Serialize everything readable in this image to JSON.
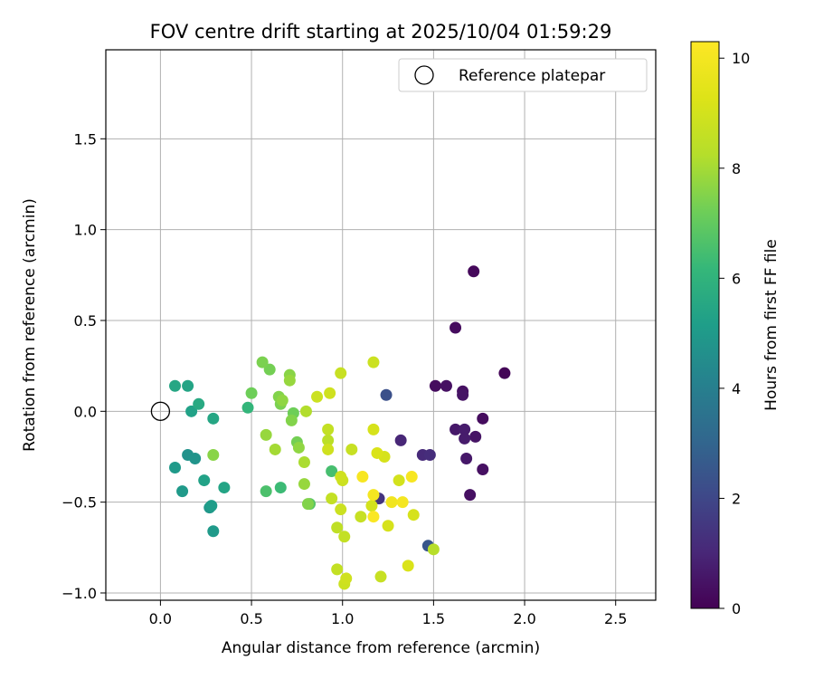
{
  "chart_data": {
    "type": "scatter",
    "title": "FOV centre drift starting at 2025/10/04 01:59:29",
    "xlabel": "Angular distance from reference (arcmin)",
    "ylabel": "Rotation from reference (arcmin)",
    "xlim": [
      -0.3,
      2.72
    ],
    "ylim": [
      -1.04,
      1.99
    ],
    "xticks": [
      0.0,
      0.5,
      1.0,
      1.5,
      2.0,
      2.5
    ],
    "xtick_labels": [
      "0.0",
      "0.5",
      "1.0",
      "1.5",
      "2.0",
      "2.5"
    ],
    "yticks": [
      -1.0,
      -0.5,
      0.0,
      0.5,
      1.0,
      1.5
    ],
    "ytick_labels": [
      "−1.0",
      "−0.5",
      "0.0",
      "0.5",
      "1.0",
      "1.5"
    ],
    "grid": true,
    "legend": {
      "position": "top-right",
      "entries": [
        "Reference platepar"
      ]
    },
    "reference_point": {
      "x": 0.0,
      "y": 0.0,
      "label": "Reference platepar"
    },
    "colorbar": {
      "label": "Hours from first FF file",
      "colormap": "viridis",
      "range": [
        0,
        10.3
      ],
      "ticks": [
        0,
        2,
        4,
        6,
        8,
        10
      ],
      "tick_labels": [
        "0",
        "2",
        "4",
        "6",
        "8",
        "10"
      ]
    },
    "points": [
      {
        "x": 1.89,
        "y": 0.21,
        "c": 0.1
      },
      {
        "x": 1.72,
        "y": 0.77,
        "c": 0.2
      },
      {
        "x": 1.62,
        "y": 0.46,
        "c": 0.3
      },
      {
        "x": 1.51,
        "y": 0.14,
        "c": 0.3
      },
      {
        "x": 1.57,
        "y": 0.14,
        "c": 0.4
      },
      {
        "x": 1.66,
        "y": 0.11,
        "c": 0.4
      },
      {
        "x": 1.66,
        "y": 0.09,
        "c": 0.5
      },
      {
        "x": 1.77,
        "y": -0.04,
        "c": 0.3
      },
      {
        "x": 1.62,
        "y": -0.1,
        "c": 0.6
      },
      {
        "x": 1.67,
        "y": -0.1,
        "c": 0.7
      },
      {
        "x": 1.67,
        "y": -0.15,
        "c": 0.7
      },
      {
        "x": 1.73,
        "y": -0.14,
        "c": 0.5
      },
      {
        "x": 1.68,
        "y": -0.26,
        "c": 0.6
      },
      {
        "x": 1.77,
        "y": -0.32,
        "c": 0.4
      },
      {
        "x": 1.7,
        "y": -0.46,
        "c": 0.4
      },
      {
        "x": 1.32,
        "y": -0.16,
        "c": 1.0
      },
      {
        "x": 1.44,
        "y": -0.24,
        "c": 1.1
      },
      {
        "x": 1.48,
        "y": -0.24,
        "c": 1.2
      },
      {
        "x": 1.2,
        "y": -0.48,
        "c": 1.4
      },
      {
        "x": 1.24,
        "y": 0.09,
        "c": 2.3
      },
      {
        "x": 1.47,
        "y": -0.74,
        "c": 2.5
      },
      {
        "x": 0.08,
        "y": 0.14,
        "c": 5.5
      },
      {
        "x": 0.15,
        "y": 0.14,
        "c": 5.4
      },
      {
        "x": 0.21,
        "y": 0.04,
        "c": 5.6
      },
      {
        "x": 0.17,
        "y": 0.0,
        "c": 5.3
      },
      {
        "x": 0.29,
        "y": -0.04,
        "c": 5.5
      },
      {
        "x": 0.08,
        "y": -0.31,
        "c": 5.0
      },
      {
        "x": 0.15,
        "y": -0.24,
        "c": 4.7
      },
      {
        "x": 0.19,
        "y": -0.26,
        "c": 4.8
      },
      {
        "x": 0.12,
        "y": -0.44,
        "c": 5.0
      },
      {
        "x": 0.24,
        "y": -0.38,
        "c": 5.3
      },
      {
        "x": 0.35,
        "y": -0.42,
        "c": 5.4
      },
      {
        "x": 0.28,
        "y": -0.52,
        "c": 5.1
      },
      {
        "x": 0.27,
        "y": -0.53,
        "c": 4.9
      },
      {
        "x": 0.29,
        "y": -0.66,
        "c": 5.0
      },
      {
        "x": 0.48,
        "y": 0.02,
        "c": 6.1
      },
      {
        "x": 0.66,
        "y": -0.42,
        "c": 6.3
      },
      {
        "x": 0.58,
        "y": -0.44,
        "c": 6.6
      },
      {
        "x": 0.82,
        "y": -0.51,
        "c": 6.8
      },
      {
        "x": 0.94,
        "y": -0.33,
        "c": 6.5
      },
      {
        "x": 0.29,
        "y": -0.24,
        "c": 7.6
      },
      {
        "x": 0.5,
        "y": 0.1,
        "c": 7.2
      },
      {
        "x": 0.56,
        "y": 0.27,
        "c": 7.4
      },
      {
        "x": 0.6,
        "y": 0.23,
        "c": 7.3
      },
      {
        "x": 0.65,
        "y": 0.08,
        "c": 7.5
      },
      {
        "x": 0.67,
        "y": 0.06,
        "c": 7.7
      },
      {
        "x": 0.66,
        "y": 0.04,
        "c": 7.4
      },
      {
        "x": 0.71,
        "y": 0.2,
        "c": 7.6
      },
      {
        "x": 0.71,
        "y": 0.17,
        "c": 7.8
      },
      {
        "x": 0.73,
        "y": -0.01,
        "c": 7.2
      },
      {
        "x": 0.72,
        "y": -0.05,
        "c": 7.5
      },
      {
        "x": 0.58,
        "y": -0.13,
        "c": 7.8
      },
      {
        "x": 0.63,
        "y": -0.21,
        "c": 8.0
      },
      {
        "x": 0.75,
        "y": -0.17,
        "c": 7.3
      },
      {
        "x": 0.76,
        "y": -0.2,
        "c": 7.7
      },
      {
        "x": 0.79,
        "y": -0.28,
        "c": 8.1
      },
      {
        "x": 0.79,
        "y": -0.4,
        "c": 7.8
      },
      {
        "x": 0.81,
        "y": -0.51,
        "c": 7.5
      },
      {
        "x": 0.8,
        "y": 0.0,
        "c": 8.2
      },
      {
        "x": 0.86,
        "y": 0.08,
        "c": 8.8
      },
      {
        "x": 0.93,
        "y": 0.1,
        "c": 8.9
      },
      {
        "x": 0.99,
        "y": 0.21,
        "c": 8.7
      },
      {
        "x": 1.17,
        "y": 0.27,
        "c": 8.8
      },
      {
        "x": 0.92,
        "y": -0.1,
        "c": 8.6
      },
      {
        "x": 0.92,
        "y": -0.16,
        "c": 8.4
      },
      {
        "x": 0.92,
        "y": -0.21,
        "c": 8.9
      },
      {
        "x": 1.05,
        "y": -0.21,
        "c": 8.7
      },
      {
        "x": 1.17,
        "y": -0.1,
        "c": 9.1
      },
      {
        "x": 1.19,
        "y": -0.23,
        "c": 9.2
      },
      {
        "x": 1.23,
        "y": -0.25,
        "c": 9.1
      },
      {
        "x": 0.99,
        "y": -0.36,
        "c": 8.9
      },
      {
        "x": 1.0,
        "y": -0.38,
        "c": 8.8
      },
      {
        "x": 0.94,
        "y": -0.48,
        "c": 8.6
      },
      {
        "x": 0.99,
        "y": -0.54,
        "c": 8.8
      },
      {
        "x": 0.97,
        "y": -0.64,
        "c": 8.5
      },
      {
        "x": 1.01,
        "y": -0.69,
        "c": 8.6
      },
      {
        "x": 1.1,
        "y": -0.58,
        "c": 8.7
      },
      {
        "x": 1.16,
        "y": -0.52,
        "c": 9.0
      },
      {
        "x": 1.25,
        "y": -0.63,
        "c": 9.1
      },
      {
        "x": 1.31,
        "y": -0.38,
        "c": 9.0
      },
      {
        "x": 1.39,
        "y": -0.57,
        "c": 9.1
      },
      {
        "x": 0.97,
        "y": -0.87,
        "c": 8.6
      },
      {
        "x": 1.02,
        "y": -0.92,
        "c": 8.9
      },
      {
        "x": 1.01,
        "y": -0.95,
        "c": 8.8
      },
      {
        "x": 1.21,
        "y": -0.91,
        "c": 8.7
      },
      {
        "x": 1.36,
        "y": -0.85,
        "c": 9.2
      },
      {
        "x": 1.5,
        "y": -0.76,
        "c": 8.3
      },
      {
        "x": 1.11,
        "y": -0.36,
        "c": 10.1
      },
      {
        "x": 1.17,
        "y": -0.46,
        "c": 10.0
      },
      {
        "x": 1.27,
        "y": -0.5,
        "c": 9.9
      },
      {
        "x": 1.33,
        "y": -0.5,
        "c": 10.0
      },
      {
        "x": 1.38,
        "y": -0.36,
        "c": 10.1
      },
      {
        "x": 1.17,
        "y": -0.58,
        "c": 10.2
      }
    ]
  }
}
